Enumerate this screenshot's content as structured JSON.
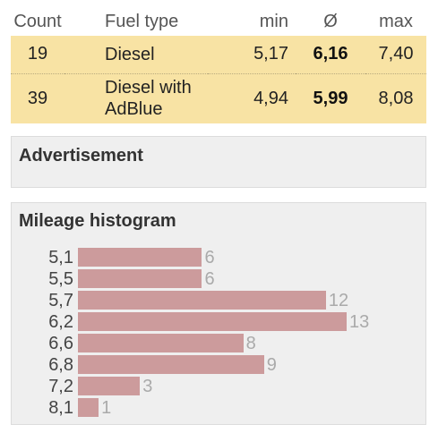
{
  "fuel_table": {
    "headers": {
      "count": "Count",
      "fuel": "Fuel type",
      "min": "min",
      "avg": "Ø",
      "max": "max"
    },
    "rows": [
      {
        "count": "19",
        "fuel": "Diesel",
        "min": "5,17",
        "avg": "6,16",
        "max": "7,40"
      },
      {
        "count": "39",
        "fuel": "Diesel with AdBlue",
        "min": "4,94",
        "avg": "5,99",
        "max": "8,08"
      }
    ],
    "row_color": "#f8e3a4"
  },
  "advertisement": {
    "title": "Advertisement"
  },
  "histogram": {
    "title": "Mileage histogram",
    "bar_color": "#cc9b9c"
  },
  "chart_data": {
    "type": "bar",
    "orientation": "horizontal",
    "title": "Mileage histogram",
    "categories": [
      "5,1",
      "5,5",
      "5,7",
      "6,2",
      "6,6",
      "6,8",
      "7,2",
      "8,1"
    ],
    "values": [
      6,
      6,
      12,
      13,
      8,
      9,
      3,
      1
    ],
    "value_labels": [
      "6",
      "6",
      "12",
      "13",
      "8",
      "9",
      "3",
      "1"
    ],
    "xlim": [
      0,
      13
    ]
  }
}
